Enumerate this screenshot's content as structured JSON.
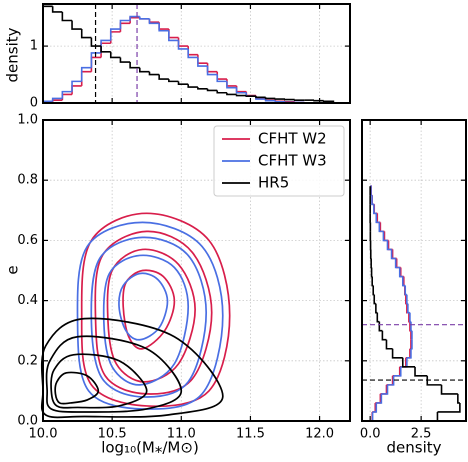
{
  "chart_data": [
    {
      "type": "histogram",
      "orientation": "vertical",
      "ylabel": "density",
      "xlim": [
        10,
        12.22
      ],
      "xticks": [
        10,
        10.5,
        11,
        11.5,
        12
      ],
      "ylim": [
        0,
        1.74
      ],
      "yticks": [
        0,
        1
      ],
      "grid": true,
      "bins": [
        10,
        10.07,
        10.14,
        10.21,
        10.28,
        10.35,
        10.42,
        10.49,
        10.56,
        10.63,
        10.7,
        10.77,
        10.84,
        10.91,
        10.98,
        11.05,
        11.12,
        11.19,
        11.26,
        11.33,
        11.4,
        11.47,
        11.54,
        11.61,
        11.68,
        11.75,
        11.82,
        11.89,
        11.96,
        12.03,
        12.1
      ],
      "series": [
        {
          "name": "CFHT W2",
          "color": "#d81e4b",
          "values": [
            0.02,
            0.05,
            0.15,
            0.3,
            0.55,
            0.8,
            1.05,
            1.25,
            1.4,
            1.5,
            1.48,
            1.42,
            1.3,
            1.15,
            1.0,
            0.85,
            0.7,
            0.55,
            0.42,
            0.3,
            0.2,
            0.13,
            0.08,
            0.05,
            0.03,
            0.02,
            0.01,
            0,
            0,
            0
          ]
        },
        {
          "name": "CFHT W3",
          "color": "#4a6fe3",
          "values": [
            0.03,
            0.08,
            0.2,
            0.38,
            0.62,
            0.88,
            1.1,
            1.3,
            1.45,
            1.52,
            1.48,
            1.4,
            1.27,
            1.1,
            0.95,
            0.8,
            0.65,
            0.5,
            0.38,
            0.27,
            0.18,
            0.12,
            0.07,
            0.04,
            0.02,
            0.01,
            0.01,
            0,
            0,
            0
          ]
        },
        {
          "name": "HR5",
          "color": "#000000",
          "values": [
            1.7,
            1.6,
            1.45,
            1.3,
            1.15,
            1.0,
            0.9,
            0.8,
            0.72,
            0.62,
            0.55,
            0.5,
            0.42,
            0.38,
            0.33,
            0.28,
            0.25,
            0.22,
            0.18,
            0.15,
            0.13,
            0.12,
            0.1,
            0.08,
            0.07,
            0.06,
            0.05,
            0.05,
            0.04,
            0.03
          ]
        }
      ],
      "lines": [
        10.38,
        10.68
      ],
      "line_colors": [
        "#000000",
        "#7b3fa8"
      ]
    },
    {
      "type": "contour",
      "ylabel": "e",
      "xlabel": "log₁₀(M⁎/M⊙)",
      "xlim": [
        10,
        12.22
      ],
      "xticks": [
        {
          "value": 10,
          "label": "10.0"
        },
        10.5,
        {
          "value": 11,
          "label": "11.0"
        },
        11.5,
        {
          "value": 12,
          "label": "12.0"
        }
      ],
      "ylim": [
        0,
        1
      ],
      "yticks": [
        {
          "value": 0,
          "label": "0.0"
        },
        0.2,
        0.4,
        0.6,
        0.8,
        {
          "value": 1,
          "label": "1.0"
        }
      ],
      "grid": true,
      "legend": "upper right",
      "series": [
        {
          "name": "CFHT W2",
          "color": "#d81e4b",
          "contours": [
            {
              "x": [
                11.35,
                11.2,
                10.75,
                10.35,
                10.28,
                10.35,
                10.75,
                11.2
              ],
              "y": [
                0.35,
                0.6,
                0.69,
                0.6,
                0.35,
                0.12,
                0.05,
                0.1
              ]
            },
            {
              "x": [
                11.22,
                11.08,
                10.75,
                10.43,
                10.38,
                10.45,
                10.75,
                11.08
              ],
              "y": [
                0.36,
                0.56,
                0.63,
                0.55,
                0.34,
                0.15,
                0.09,
                0.14
              ]
            },
            {
              "x": [
                11.1,
                10.98,
                10.72,
                10.5,
                10.47,
                10.53,
                10.73,
                10.98
              ],
              "y": [
                0.37,
                0.52,
                0.57,
                0.5,
                0.33,
                0.19,
                0.13,
                0.19
              ]
            },
            {
              "x": [
                10.95,
                10.87,
                10.72,
                10.6,
                10.58,
                10.62,
                10.72,
                10.88
              ],
              "y": [
                0.4,
                0.48,
                0.5,
                0.46,
                0.38,
                0.28,
                0.24,
                0.3
              ]
            }
          ]
        },
        {
          "name": "CFHT W3",
          "color": "#4a6fe3",
          "contours": [
            {
              "x": [
                11.3,
                11.15,
                10.72,
                10.32,
                10.25,
                10.33,
                10.72,
                11.15
              ],
              "y": [
                0.35,
                0.58,
                0.66,
                0.58,
                0.33,
                0.1,
                0.04,
                0.09
              ]
            },
            {
              "x": [
                11.18,
                11.05,
                10.72,
                10.41,
                10.35,
                10.43,
                10.72,
                11.05
              ],
              "y": [
                0.36,
                0.55,
                0.61,
                0.54,
                0.33,
                0.14,
                0.08,
                0.13
              ]
            },
            {
              "x": [
                11.05,
                10.95,
                10.7,
                10.48,
                10.44,
                10.5,
                10.7,
                10.95
              ],
              "y": [
                0.38,
                0.51,
                0.55,
                0.49,
                0.33,
                0.18,
                0.12,
                0.19
              ]
            },
            {
              "x": [
                10.9,
                10.83,
                10.7,
                10.58,
                10.55,
                10.6,
                10.7,
                10.84
              ],
              "y": [
                0.4,
                0.47,
                0.49,
                0.45,
                0.38,
                0.3,
                0.27,
                0.31
              ]
            }
          ]
        },
        {
          "name": "HR5",
          "color": "#000000",
          "contours": [
            {
              "x": [
                11.3,
                10.95,
                10.3,
                10.02,
                10.0,
                10.02,
                10.3,
                10.9
              ],
              "y": [
                0.08,
                0.28,
                0.34,
                0.25,
                0.1,
                0.02,
                0.015,
                0.02
              ]
            },
            {
              "x": [
                11.0,
                10.75,
                10.25,
                10.05,
                10.03,
                10.06,
                10.3,
                10.75
              ],
              "y": [
                0.1,
                0.24,
                0.28,
                0.2,
                0.1,
                0.04,
                0.03,
                0.04
              ]
            },
            {
              "x": [
                10.75,
                10.55,
                10.22,
                10.08,
                10.06,
                10.1,
                10.25,
                10.55
              ],
              "y": [
                0.1,
                0.2,
                0.22,
                0.17,
                0.1,
                0.05,
                0.045,
                0.05
              ]
            },
            {
              "x": [
                10.4,
                10.32,
                10.17,
                10.1,
                10.09,
                10.12,
                10.2,
                10.32
              ],
              "y": [
                0.1,
                0.15,
                0.16,
                0.13,
                0.09,
                0.06,
                0.06,
                0.07
              ]
            }
          ]
        }
      ]
    },
    {
      "type": "histogram",
      "orientation": "horizontal",
      "xlabel": "density",
      "xlim": [
        -0.4,
        4.7
      ],
      "xticks": [
        {
          "value": 0,
          "label": "0.0"
        },
        2.5
      ],
      "ylim": [
        0,
        1
      ],
      "yticks": [
        0,
        0.2,
        0.4,
        0.6,
        0.8,
        1
      ],
      "grid": true,
      "bins": [
        0,
        0.03,
        0.06,
        0.09,
        0.12,
        0.15,
        0.18,
        0.21,
        0.24,
        0.27,
        0.3,
        0.33,
        0.36,
        0.39,
        0.42,
        0.45,
        0.48,
        0.51,
        0.54,
        0.57,
        0.6,
        0.63,
        0.66,
        0.69,
        0.72,
        0.75,
        0.78
      ],
      "series": [
        {
          "name": "CFHT W2",
          "color": "#d81e4b",
          "values": [
            0.1,
            0.25,
            0.5,
            0.8,
            1.1,
            1.45,
            1.75,
            1.95,
            2.0,
            2.0,
            1.95,
            1.9,
            1.8,
            1.75,
            1.7,
            1.65,
            1.5,
            1.3,
            1.1,
            0.9,
            0.7,
            0.5,
            0.35,
            0.2,
            0.1,
            0.05
          ]
        },
        {
          "name": "CFHT W3",
          "color": "#4a6fe3",
          "values": [
            0.12,
            0.3,
            0.55,
            0.85,
            1.15,
            1.5,
            1.8,
            2.0,
            2.05,
            2.05,
            2.0,
            1.95,
            1.85,
            1.8,
            1.72,
            1.6,
            1.45,
            1.25,
            1.05,
            0.85,
            0.65,
            0.45,
            0.3,
            0.18,
            0.09,
            0.04
          ]
        },
        {
          "name": "HR5",
          "color": "#000000",
          "values": [
            3.3,
            4.4,
            4.3,
            3.5,
            2.8,
            2.2,
            1.6,
            1.1,
            0.8,
            0.6,
            0.45,
            0.35,
            0.28,
            0.2,
            0.15,
            0.1,
            0.07,
            0.05,
            0.03,
            0.02,
            0.01,
            0.01,
            0,
            0,
            0,
            0
          ]
        }
      ],
      "lines": [
        0.32,
        0.136
      ],
      "line_colors": [
        "#7b3fa8",
        "#000000"
      ]
    }
  ]
}
